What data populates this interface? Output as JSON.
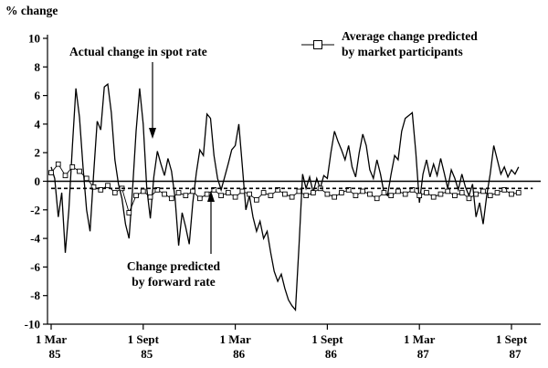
{
  "figure": {
    "ylabel": "% change"
  },
  "chart_data": {
    "type": "line",
    "title": "",
    "xlabel": "",
    "ylabel": "% change",
    "ylim": [
      -10,
      10
    ],
    "yticks": [
      10,
      8,
      6,
      4,
      2,
      0,
      -2,
      -4,
      -6,
      -8,
      -10
    ],
    "grid": false,
    "zero_line": true,
    "colors": {
      "line": "#000000",
      "background": "#ffffff"
    },
    "x_axis": {
      "unit": "weeks since 1 Mar 1985",
      "range_weeks": [
        0,
        136
      ],
      "ticks": [
        {
          "week": 0,
          "line1": "1 Mar",
          "line2": "85"
        },
        {
          "week": 26,
          "line1": "1 Sept",
          "line2": "85"
        },
        {
          "week": 52,
          "line1": "1 Mar",
          "line2": "86"
        },
        {
          "week": 78,
          "line1": "1 Sept",
          "line2": "86"
        },
        {
          "week": 104,
          "line1": "1 Mar",
          "line2": "87"
        },
        {
          "week": 130,
          "line1": "1 Sept",
          "line2": "87"
        }
      ]
    },
    "legend": {
      "position": "top-right",
      "marker": "open-square-on-line",
      "lines": [
        "Average change predicted",
        "by market participants"
      ]
    },
    "annotations": [
      {
        "id": "spot-label",
        "text": "Actual change in spot rate",
        "arrow": "down"
      },
      {
        "id": "forward-label",
        "lines": [
          "Change predicted",
          "by forward rate"
        ],
        "arrow": "up"
      }
    ],
    "series": [
      {
        "name": "Actual change in spot rate",
        "style": "solid",
        "x_start": 0,
        "x_step": 1,
        "values": [
          1.0,
          0.2,
          -2.5,
          -0.8,
          -5.0,
          -2.0,
          2.5,
          6.5,
          4.5,
          1.0,
          -2.0,
          -3.5,
          0.5,
          4.2,
          3.6,
          6.6,
          6.8,
          4.8,
          1.5,
          -0.2,
          -1.2,
          -3.0,
          -4.0,
          -0.5,
          3.5,
          6.5,
          4.0,
          -0.5,
          -2.6,
          0.3,
          2.1,
          1.2,
          0.4,
          1.6,
          0.7,
          -1.2,
          -4.5,
          -2.2,
          -3.2,
          -4.4,
          -1.5,
          0.6,
          2.2,
          1.8,
          4.7,
          4.4,
          1.8,
          0.2,
          -0.6,
          0.3,
          1.2,
          2.2,
          2.5,
          4.0,
          1.0,
          -2.0,
          -1.0,
          -2.5,
          -3.5,
          -2.8,
          -4.0,
          -3.5,
          -5.0,
          -6.3,
          -7.0,
          -6.5,
          -7.5,
          -8.3,
          -8.7,
          -9.0,
          -4.5,
          0.5,
          -0.5,
          0.3,
          -0.8,
          0.2,
          -0.5,
          0.4,
          0.2,
          2.0,
          3.5,
          2.8,
          2.2,
          1.5,
          2.5,
          1.0,
          0.3,
          2.0,
          3.3,
          2.5,
          0.8,
          0.2,
          1.5,
          0.5,
          -0.8,
          -1.0,
          0.5,
          1.8,
          1.5,
          3.5,
          4.4,
          4.6,
          4.8,
          2.0,
          -1.5,
          0.5,
          1.5,
          0.3,
          1.2,
          0.4,
          1.6,
          0.6,
          -0.5,
          0.8,
          0.2,
          -0.6,
          0.5,
          -0.4,
          -1.0,
          -0.2,
          -2.5,
          -1.5,
          -3.0,
          -1.0,
          0.5,
          2.5,
          1.5,
          0.5,
          1.0,
          0.3,
          0.8,
          0.5,
          1.0
        ]
      },
      {
        "name": "Average change predicted by market participants",
        "style": "square-markers",
        "x_start": 0,
        "x_step": 2,
        "values": [
          0.6,
          1.2,
          0.4,
          1.0,
          0.7,
          0.2,
          -0.4,
          -0.6,
          -0.3,
          -0.8,
          -0.5,
          -2.2,
          -1.0,
          -0.7,
          -1.1,
          -0.6,
          -0.9,
          -1.2,
          -0.8,
          -1.0,
          -0.7,
          -1.2,
          -0.9,
          -0.6,
          -1.0,
          -0.8,
          -1.1,
          -0.7,
          -0.9,
          -1.3,
          -0.8,
          -1.0,
          -0.6,
          -0.9,
          -1.1,
          -0.7,
          -1.0,
          -0.8,
          -0.5,
          -0.9,
          -1.1,
          -0.8,
          -0.6,
          -1.0,
          -0.7,
          -0.9,
          -1.2,
          -0.8,
          -1.0,
          -0.7,
          -0.9,
          -0.6,
          -1.0,
          -0.8,
          -1.1,
          -0.9,
          -0.7,
          -1.0,
          -0.8,
          -1.2,
          -0.9,
          -0.7,
          -1.0,
          -0.8,
          -0.6,
          -0.9,
          -0.8
        ]
      },
      {
        "name": "Change predicted by forward rate",
        "style": "dashed",
        "x_start": 0,
        "x_step": 136,
        "values": [
          -0.5,
          -0.5
        ]
      }
    ]
  }
}
